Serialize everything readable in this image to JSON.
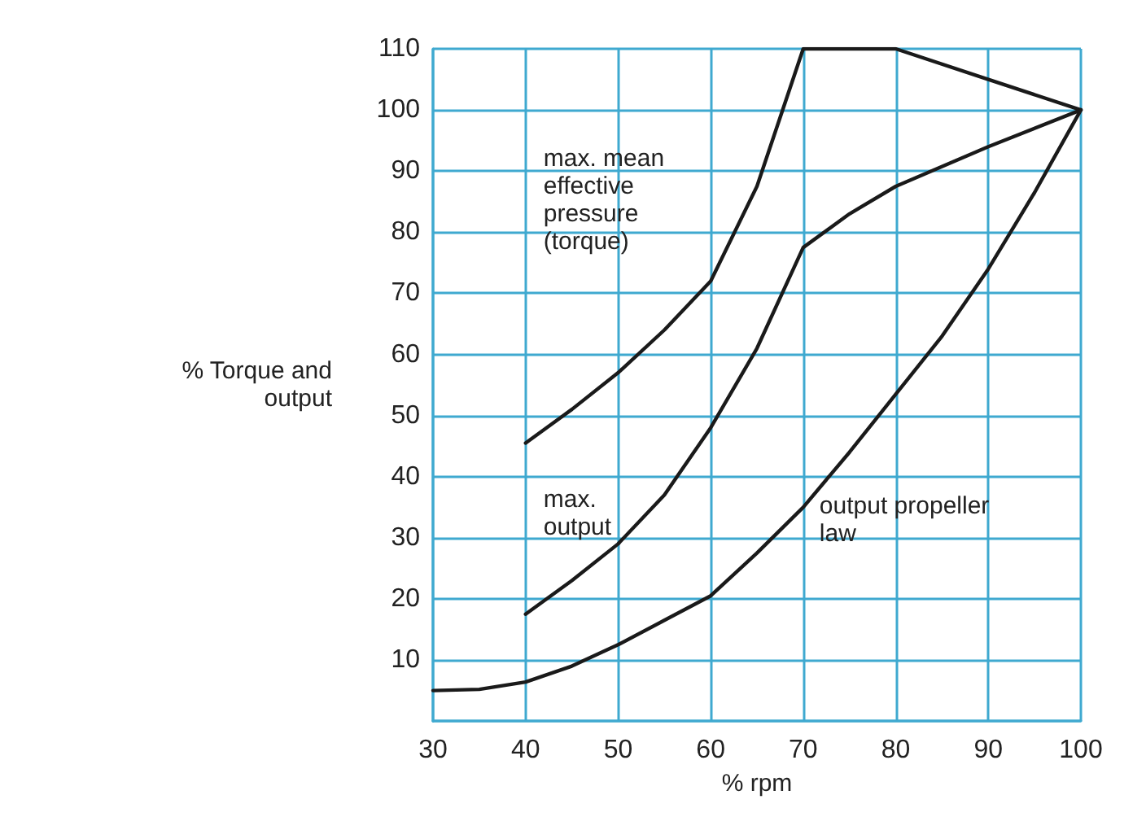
{
  "chart_data": {
    "type": "line",
    "xlabel": "% rpm",
    "ylabel": "% Torque and\noutput",
    "xlim": [
      30,
      100
    ],
    "xticks": [
      30,
      40,
      50,
      60,
      70,
      80,
      90,
      100
    ],
    "ylim": [
      0,
      110
    ],
    "yticks": [
      {
        "value": 0,
        "label": null
      },
      10,
      20,
      30,
      40,
      50,
      60,
      70,
      80,
      90,
      100,
      110
    ],
    "grid": true,
    "legend": false,
    "marker": "none",
    "line_style": "solid",
    "series": [
      {
        "name": "max. mean\neffective\npressure\n(torque)",
        "color": "#1a1a1a",
        "x": [
          40,
          45,
          50,
          55,
          60,
          65,
          70,
          80,
          90,
          100
        ],
        "values": [
          45.5,
          51,
          57,
          64,
          72,
          87.5,
          110,
          110,
          105,
          100
        ]
      },
      {
        "name": "max.\noutput",
        "color": "#1a1a1a",
        "x": [
          40,
          45,
          50,
          55,
          60,
          65,
          70,
          75,
          80,
          90,
          100
        ],
        "values": [
          17.5,
          23,
          29,
          37,
          48,
          61,
          77.5,
          83,
          87.5,
          94,
          100
        ]
      },
      {
        "name": "output propeller\nlaw",
        "color": "#1a1a1a",
        "x": [
          30,
          35,
          40,
          45,
          50,
          55,
          60,
          65,
          70,
          75,
          80,
          85,
          90,
          95,
          100
        ],
        "values": [
          5,
          5.2,
          6.4,
          9,
          12.5,
          16.5,
          20.5,
          27.5,
          35,
          44,
          53.5,
          63,
          74,
          86.5,
          100
        ]
      }
    ]
  }
}
